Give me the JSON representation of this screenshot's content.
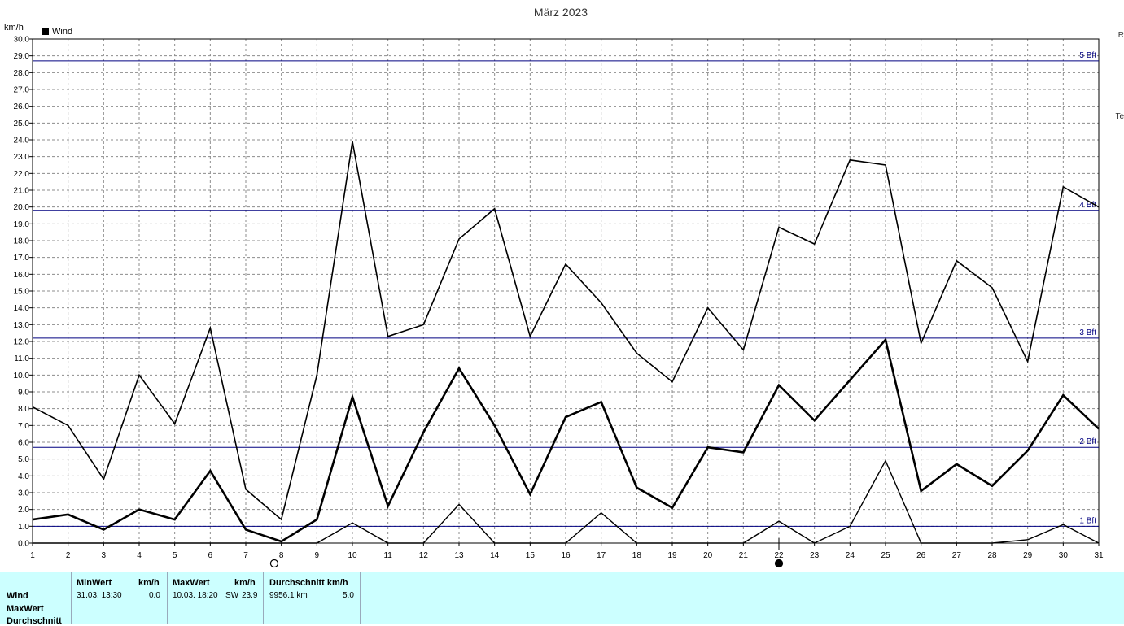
{
  "chart_data": {
    "type": "line",
    "title": "März 2023",
    "ylabel": "km/h",
    "xlabel": "",
    "xlim": [
      1,
      31
    ],
    "ylim": [
      0,
      30
    ],
    "x": [
      1,
      2,
      3,
      4,
      5,
      6,
      7,
      8,
      9,
      10,
      11,
      12,
      13,
      14,
      15,
      16,
      17,
      18,
      19,
      20,
      21,
      22,
      23,
      24,
      25,
      26,
      27,
      28,
      29,
      30,
      31
    ],
    "yticks": [
      "0.0",
      "1.0",
      "2.0",
      "3.0",
      "4.0",
      "5.0",
      "6.0",
      "7.0",
      "8.0",
      "9.0",
      "10.0",
      "11.0",
      "12.0",
      "13.0",
      "14.0",
      "15.0",
      "16.0",
      "17.0",
      "18.0",
      "19.0",
      "20.0",
      "21.0",
      "22.0",
      "23.0",
      "24.0",
      "25.0",
      "26.0",
      "27.0",
      "28.0",
      "29.0",
      "30.0"
    ],
    "xticks": [
      "1",
      "2",
      "3",
      "4",
      "5",
      "6",
      "7",
      "8",
      "9",
      "10",
      "11",
      "12",
      "13",
      "14",
      "15",
      "16",
      "17",
      "18",
      "19",
      "20",
      "21",
      "22",
      "23",
      "24",
      "25",
      "26",
      "27",
      "28",
      "29",
      "30",
      "31"
    ],
    "grid": true,
    "legend": {
      "position": "top-left",
      "entries": [
        "Wind"
      ],
      "color": "#000000"
    },
    "series": [
      {
        "role": "max",
        "values": [
          8.1,
          7.0,
          3.8,
          10.0,
          7.1,
          12.8,
          3.2,
          1.4,
          10.0,
          23.9,
          12.3,
          13.0,
          18.1,
          19.9,
          12.3,
          16.6,
          14.3,
          11.3,
          9.6,
          14.0,
          11.5,
          18.8,
          17.8,
          22.8,
          22.5,
          11.9,
          16.8,
          15.2,
          10.8,
          21.2,
          20.0
        ]
      },
      {
        "role": "avg",
        "values": [
          1.4,
          1.7,
          0.8,
          2.0,
          1.4,
          4.3,
          0.8,
          0.1,
          1.4,
          8.7,
          2.2,
          6.6,
          10.4,
          7.0,
          2.9,
          7.5,
          8.4,
          3.3,
          2.1,
          5.7,
          5.4,
          9.4,
          7.3,
          9.7,
          12.1,
          3.1,
          4.7,
          3.4,
          5.5,
          8.8,
          6.8
        ]
      },
      {
        "role": "min",
        "values": [
          0,
          0,
          0,
          0,
          0,
          0,
          0,
          0,
          0,
          1.2,
          0,
          0,
          2.3,
          0,
          0,
          0,
          1.8,
          0,
          0,
          0,
          0,
          1.3,
          0,
          1.0,
          4.9,
          0,
          0,
          0,
          0.2,
          1.1,
          0
        ]
      }
    ],
    "reference_lines": [
      {
        "label": "1 Bft",
        "value": 1.0
      },
      {
        "label": "2 Bft",
        "value": 5.7
      },
      {
        "label": "3 Bft",
        "value": 12.2
      },
      {
        "label": "4 Bft",
        "value": 19.8
      },
      {
        "label": "5 Bft",
        "value": 28.7
      }
    ],
    "reference_color": "#000080",
    "moon_phases": [
      {
        "day": 7.8,
        "phase": "full"
      },
      {
        "day": 22.0,
        "phase": "new"
      }
    ]
  },
  "stats": {
    "row_labels": [
      "Wind",
      "MaxWert",
      "Durchschnitt"
    ],
    "min": {
      "head": "MinWert",
      "unit": "km/h",
      "when": "31.03.  13:30",
      "value": "0.0"
    },
    "max": {
      "head": "MaxWert",
      "unit": "km/h",
      "when": "10.03.  18:20",
      "dir": "SW",
      "value": "23.9"
    },
    "avg": {
      "head": "Durchschnitt km/h",
      "distance": "9956.1 km",
      "value": "5.0"
    },
    "panel_color": "#ccffff"
  },
  "edge_marks": [
    "R",
    "Te"
  ]
}
